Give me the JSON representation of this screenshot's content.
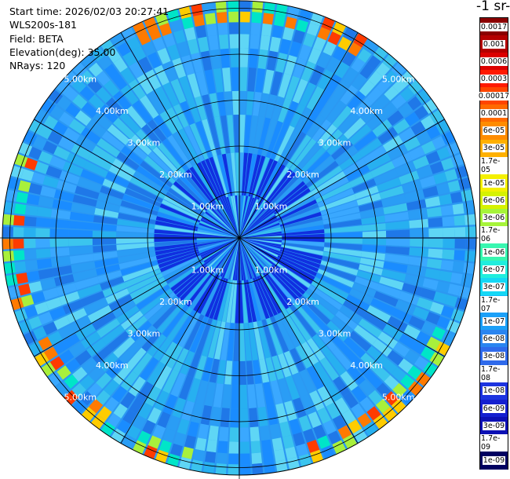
{
  "info": {
    "start_time": "Start time: 2026/02/03 20:27:41",
    "instrument": "WLS200s-181",
    "field": "Field: BETA",
    "elevation": "Elevation(deg): 35.00",
    "nrays": "NRays: 120"
  },
  "unit_label": "-1 sr-",
  "colorbar": {
    "ticks": [
      "0.0017",
      "0.001",
      "0.0006",
      "0.0003",
      "0.00017",
      "0.0001",
      "6e-05",
      "3e-05",
      "1.7e-05",
      "1e-05",
      "6e-06",
      "3e-06",
      "1.7e-06",
      "1e-06",
      "6e-07",
      "3e-07",
      "1.7e-07",
      "1e-07",
      "6e-08",
      "3e-08",
      "1.7e-08",
      "1e-08",
      "6e-09",
      "3e-09",
      "1.7e-09",
      "1e-09"
    ],
    "colors": [
      "#8b0000",
      "#b40000",
      "#dc0000",
      "#ff1a00",
      "#ff4500",
      "#ff6a00",
      "#ff8c00",
      "#ffb000",
      "#ffd300",
      "#f4f000",
      "#d6f200",
      "#a6f43a",
      "#6ef57a",
      "#38f7b0",
      "#20eedd",
      "#14d8f5",
      "#10bcf8",
      "#1ba0f8",
      "#2a85f0",
      "#2f6aeb",
      "#2a4fe6",
      "#1d34e0",
      "#1420d0",
      "#0c10b4",
      "#060890",
      "#000060"
    ]
  },
  "range_labels": [
    "1.00km",
    "2.00km",
    "3.00km",
    "4.00km",
    "5.00km"
  ]
}
